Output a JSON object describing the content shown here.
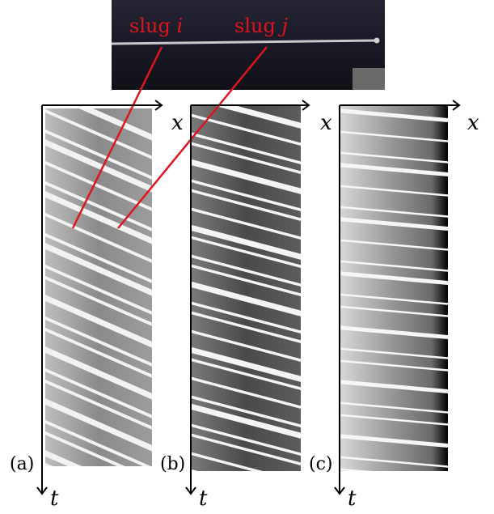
{
  "photo": {
    "slug_i": {
      "word": "slug",
      "symbol": "i"
    },
    "slug_j": {
      "word": "slug",
      "symbol": "j"
    }
  },
  "panels": [
    {
      "id": "a",
      "label": "(a)",
      "x_axis": "x",
      "t_axis": "t"
    },
    {
      "id": "b",
      "label": "(b)",
      "x_axis": "x",
      "t_axis": "t"
    },
    {
      "id": "c",
      "label": "(c)",
      "x_axis": "x",
      "t_axis": "t"
    }
  ],
  "colors": {
    "annotation": "#e0141e",
    "axis": "#000000"
  }
}
